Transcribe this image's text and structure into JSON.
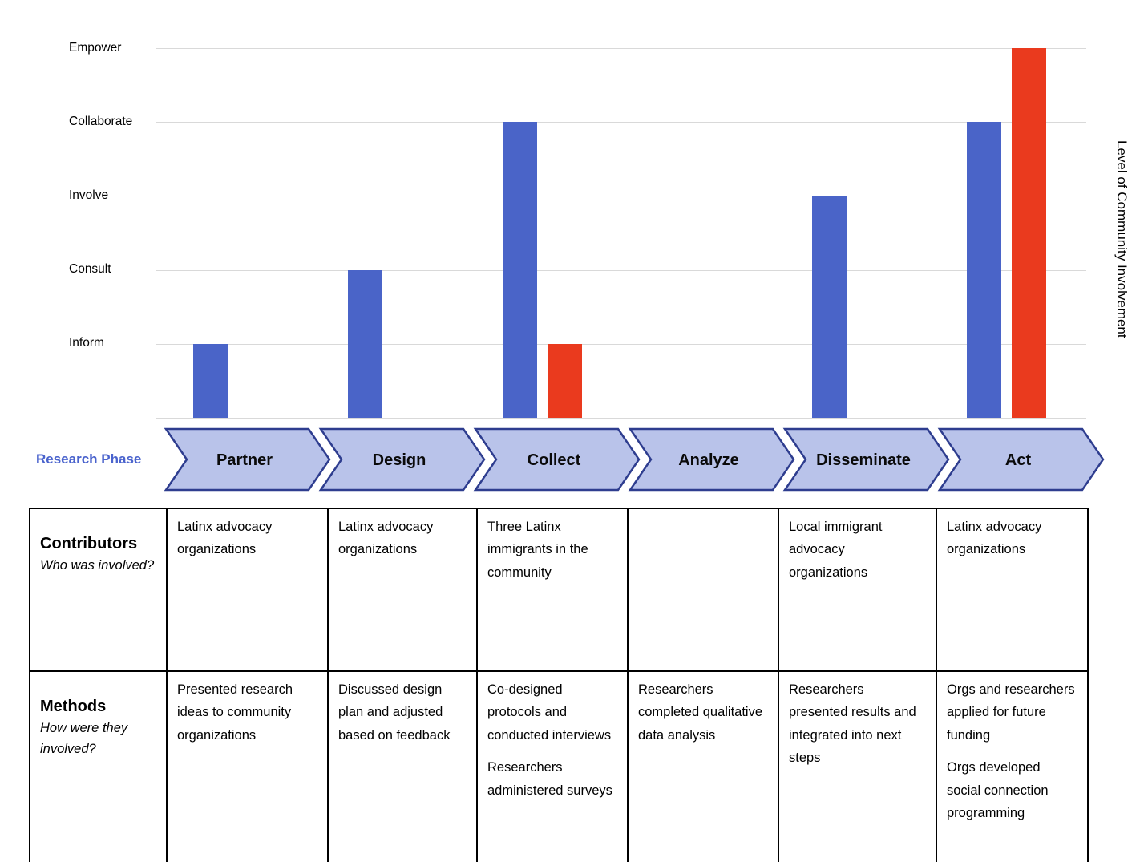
{
  "chart_data": {
    "type": "bar",
    "title": "",
    "categories": [
      "Partner",
      "Design",
      "Collect",
      "Analyze",
      "Disseminate",
      "Act"
    ],
    "y_axis_labels_top_to_bottom": [
      "Empower",
      "Collaborate",
      "Involve",
      "Consult",
      "Inform"
    ],
    "value_scale": {
      "1": "Inform",
      "2": "Consult",
      "3": "Involve",
      "4": "Collaborate",
      "5": "Empower"
    },
    "ylim": [
      0,
      5
    ],
    "grid": true,
    "legend": false,
    "right_axis_label": "Level of Community Involvement",
    "series": [
      {
        "name": "blue",
        "color": "#4a64c8",
        "values": [
          1,
          2,
          4,
          0,
          3,
          4
        ]
      },
      {
        "name": "red",
        "color": "#ea3a1e",
        "values": [
          0,
          0,
          1,
          0,
          0,
          5
        ]
      }
    ]
  },
  "phase_row": {
    "label": "Research Phase",
    "label_color": "#4a63cd",
    "phases": [
      "Partner",
      "Design",
      "Collect",
      "Analyze",
      "Disseminate",
      "Act"
    ],
    "arrow_fill": "#b9c3ea",
    "arrow_border": "#2e3d8f"
  },
  "table": {
    "rows": [
      {
        "header": "Contributors",
        "subheader": "Who was involved?",
        "cells": [
          [
            "Latinx advocacy organizations"
          ],
          [
            "Latinx advocacy organizations"
          ],
          [
            "Three Latinx immigrants in the community"
          ],
          [],
          [
            "Local immigrant advocacy organizations"
          ],
          [
            "Latinx advocacy organizations"
          ]
        ]
      },
      {
        "header": "Methods",
        "subheader": "How were they involved?",
        "cells": [
          [
            "Presented research ideas to community organizations"
          ],
          [
            "Discussed design plan and adjusted based on feedback"
          ],
          [
            "Co-designed protocols and conducted interviews",
            "Researchers administered surveys"
          ],
          [
            "Researchers completed qualitative data analysis"
          ],
          [
            "Researchers presented results and integrated into next steps"
          ],
          [
            "Orgs and researchers applied for future funding",
            "Orgs developed social connection programming"
          ]
        ]
      }
    ]
  }
}
